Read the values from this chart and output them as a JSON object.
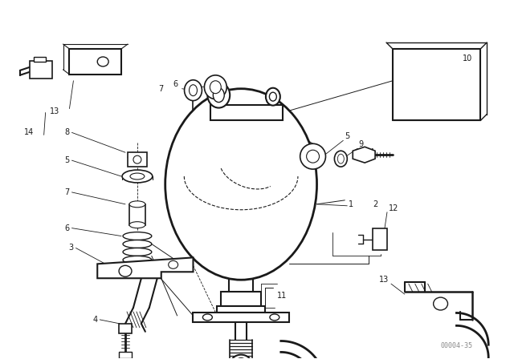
{
  "background_color": "#ffffff",
  "line_color": "#1a1a1a",
  "watermark": "00004-35",
  "fig_width": 6.4,
  "fig_height": 4.48,
  "dpi": 100
}
